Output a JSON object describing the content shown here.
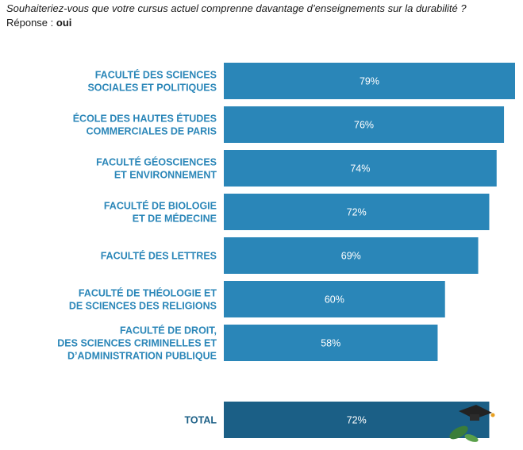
{
  "header": {
    "question": "Souhaiteriez-vous que votre cursus actuel comprenne davantage d’enseignements sur la durabilité ?",
    "response_prefix": "Réponse : ",
    "response_value": "oui"
  },
  "colors": {
    "bar": "#2a86b8",
    "total_bar": "#1b5f86",
    "label": "#2a86b8",
    "total_label": "#1b5f86"
  },
  "chart_data": {
    "type": "bar",
    "orientation": "horizontal",
    "categories": [
      [
        "FACULTÉ DES SCIENCES",
        "SOCIALES ET POLITIQUES"
      ],
      [
        "ÉCOLE DES HAUTES ÉTUDES",
        "COMMERCIALES DE PARIS"
      ],
      [
        "FACULTÉ GÉOSCIENCES",
        "ET ENVIRONNEMENT"
      ],
      [
        "FACULTÉ DE BIOLOGIE",
        "ET DE MÉDECINE"
      ],
      [
        "FACULTÉ DES LETTRES"
      ],
      [
        "FACULTÉ DE THÉOLOGIE ET",
        "DE SCIENCES DES RELIGIONS"
      ],
      [
        "FACULTÉ DE DROIT,",
        "DES SCIENCES CRIMINELLES ET",
        "D’ADMINISTRATION PUBLIQUE"
      ]
    ],
    "values": [
      79,
      76,
      74,
      72,
      69,
      60,
      58
    ],
    "value_labels": [
      "79%",
      "76%",
      "74%",
      "72%",
      "69%",
      "60%",
      "58%"
    ],
    "total": {
      "label": "TOTAL",
      "value": 72,
      "value_label": "72%"
    },
    "unit": "%"
  }
}
